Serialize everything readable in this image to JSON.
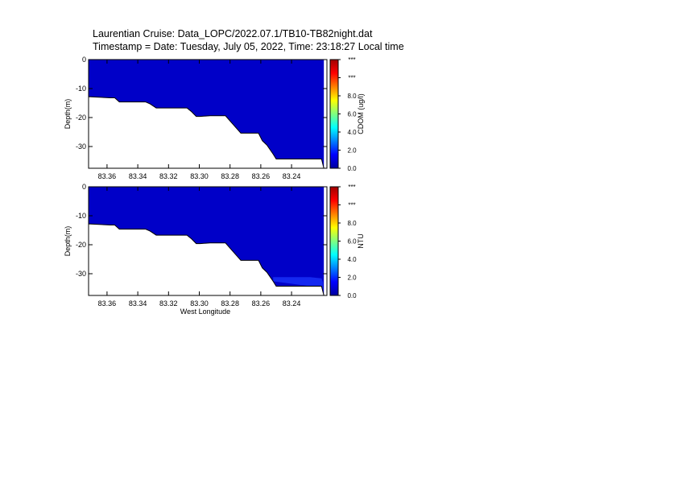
{
  "title_line1": "Laurentian Cruise: Data_LOPC/2022.07.1/TB10-TB82night.dat",
  "title_line2": "Timestamp = Date: Tuesday, July 05, 2022, Time: 23:18:27 Local time",
  "chart_data": [
    {
      "type": "heatmap",
      "xlabel": "",
      "ylabel": "Depth(m)",
      "x_ticks": [
        "83.36",
        "83.34",
        "83.32",
        "83.30",
        "83.28",
        "83.26",
        "83.24"
      ],
      "x_tick_values": [
        83.36,
        83.34,
        83.32,
        83.3,
        83.28,
        83.26,
        83.24
      ],
      "xlim": [
        83.372,
        83.217
      ],
      "y_ticks": [
        "0",
        "-10",
        "-20",
        "-30"
      ],
      "y_tick_values": [
        0,
        -10,
        -20,
        -30
      ],
      "ylim": [
        -37.5,
        0
      ],
      "colorbar": {
        "label": "CDOM (ug/l)",
        "tick_labels": [
          "0.0",
          "2.0",
          "4.0",
          "6.0",
          "8.0",
          "***",
          "***"
        ],
        "tick_values": [
          0,
          2,
          4,
          6,
          8,
          10,
          12
        ],
        "range": [
          0,
          12
        ]
      },
      "colormap": [
        "#0000a0",
        "#0000ff",
        "#0080ff",
        "#00ffff",
        "#80ff80",
        "#ffff00",
        "#ff8000",
        "#ff0000",
        "#a00000"
      ],
      "bottom_profile": {
        "x": [
          83.372,
          83.358,
          83.355,
          83.352,
          83.343,
          83.335,
          83.332,
          83.328,
          83.316,
          83.308,
          83.305,
          83.302,
          83.2995,
          83.293,
          83.283,
          83.273,
          83.268,
          83.2615,
          83.259,
          83.256,
          83.252,
          83.25,
          83.228,
          83.2205,
          83.219
        ],
        "depth": [
          -12.8,
          -13.2,
          -13.2,
          -14.6,
          -14.6,
          -14.6,
          -15.3,
          -16.7,
          -16.7,
          -16.7,
          -18.0,
          -19.6,
          -19.6,
          -19.4,
          -19.4,
          -25.4,
          -25.4,
          -25.4,
          -28.0,
          -29.5,
          -32.6,
          -34.3,
          -34.3,
          -34.3,
          -37.5
        ]
      },
      "fill_layers": [
        {
          "value": 0.2,
          "color": "#0000c8",
          "x": [
            83.372,
            83.219
          ],
          "depth_top": [
            0,
            0
          ],
          "depth_bottom": "bottom_profile"
        }
      ]
    },
    {
      "type": "heatmap",
      "xlabel": "West Longitude",
      "ylabel": "Depth(m)",
      "x_ticks": [
        "83.36",
        "83.34",
        "83.32",
        "83.30",
        "83.28",
        "83.26",
        "83.24"
      ],
      "x_tick_values": [
        83.36,
        83.34,
        83.32,
        83.3,
        83.28,
        83.26,
        83.24
      ],
      "xlim": [
        83.372,
        83.217
      ],
      "y_ticks": [
        "0",
        "-10",
        "-20",
        "-30"
      ],
      "y_tick_values": [
        0,
        -10,
        -20,
        -30
      ],
      "ylim": [
        -37.5,
        0
      ],
      "colorbar": {
        "label": "NTU",
        "tick_labels": [
          "0.0",
          "2.0",
          "4.0",
          "6.0",
          "8.0",
          "***",
          "***"
        ],
        "tick_values": [
          0,
          2,
          4,
          6,
          8,
          10,
          12
        ],
        "range": [
          0,
          12
        ]
      },
      "colormap": [
        "#0000a0",
        "#0000ff",
        "#0080ff",
        "#00ffff",
        "#80ff80",
        "#ffff00",
        "#ff8000",
        "#ff0000",
        "#a00000"
      ],
      "bottom_profile": {
        "x": [
          83.372,
          83.358,
          83.355,
          83.352,
          83.343,
          83.335,
          83.332,
          83.328,
          83.316,
          83.308,
          83.305,
          83.302,
          83.2995,
          83.293,
          83.283,
          83.273,
          83.268,
          83.2615,
          83.259,
          83.256,
          83.252,
          83.25,
          83.228,
          83.2205,
          83.219
        ],
        "depth": [
          -12.8,
          -13.2,
          -13.2,
          -14.6,
          -14.6,
          -14.6,
          -15.3,
          -16.7,
          -16.7,
          -16.7,
          -18.0,
          -19.6,
          -19.6,
          -19.4,
          -19.4,
          -25.4,
          -25.4,
          -25.4,
          -28.0,
          -29.5,
          -32.6,
          -34.3,
          -34.3,
          -34.3,
          -37.5
        ]
      },
      "fill_layers": [
        {
          "value": 0.2,
          "color": "#0000c8",
          "x": [
            83.372,
            83.219
          ],
          "depth_top": [
            0,
            0
          ],
          "depth_bottom": "bottom_profile"
        },
        {
          "value": 1.0,
          "color": "#1428f0",
          "x": [
            83.252,
            83.228,
            83.2205,
            83.2195
          ],
          "depth_top": [
            -31.2,
            -31.2,
            -31.6,
            -33.0
          ],
          "depth_bottom": [
            -32.6,
            -34.3,
            -34.3,
            -36.0
          ]
        }
      ]
    }
  ]
}
